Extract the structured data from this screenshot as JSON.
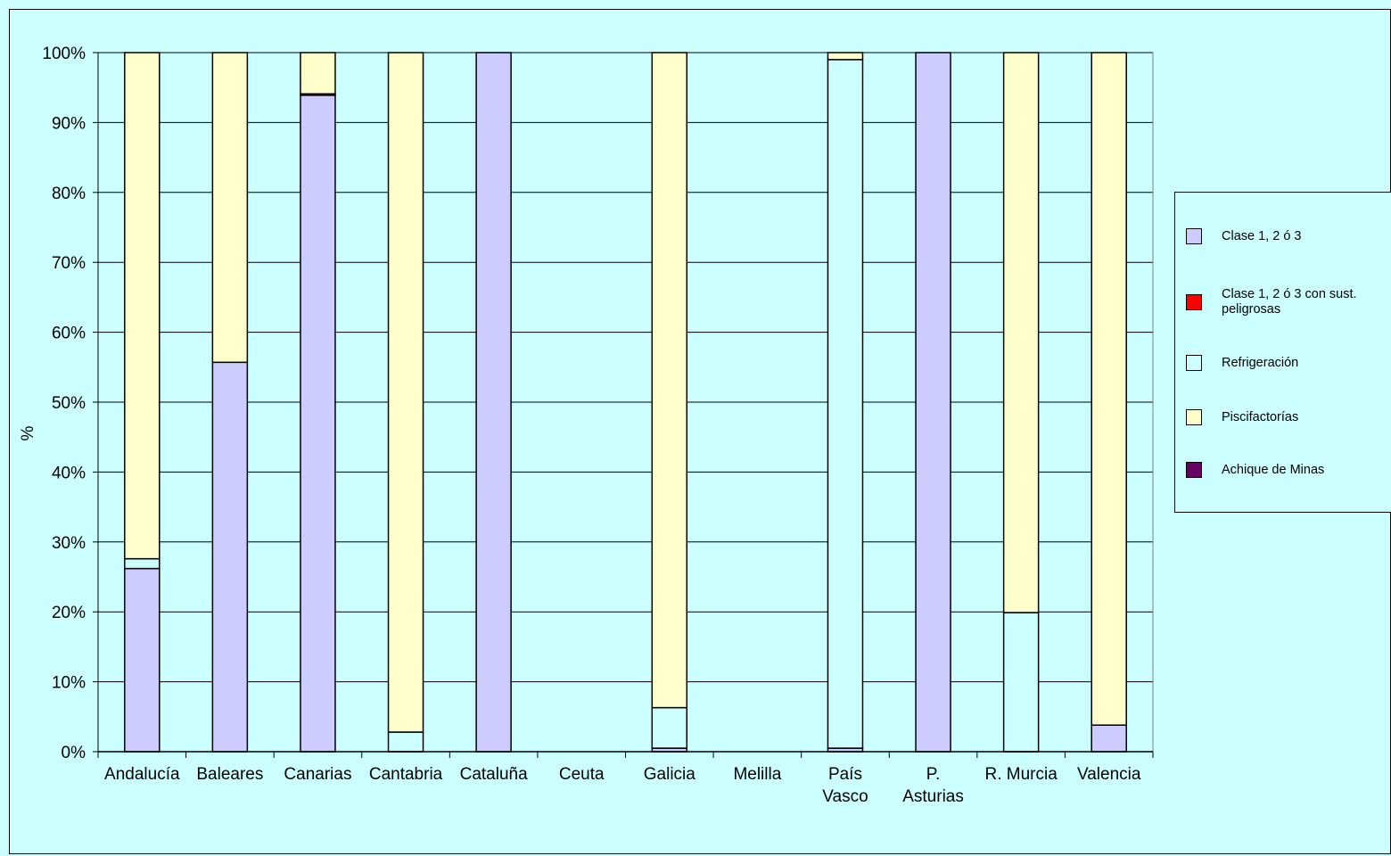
{
  "chart_data": {
    "type": "bar",
    "stacked": true,
    "percent_stacked": true,
    "ylabel": "%",
    "xlabel": "",
    "ylim": [
      0,
      100
    ],
    "yticks": [
      "0%",
      "10%",
      "20%",
      "30%",
      "40%",
      "50%",
      "60%",
      "70%",
      "80%",
      "90%",
      "100%"
    ],
    "grid": true,
    "legend_position": "right",
    "categories": [
      "Andalucía",
      "Baleares",
      "Canarias",
      "Cantabria",
      "Cataluña",
      "Ceuta",
      "Galicia",
      "Melilla",
      "País Vasco",
      "P. Asturias",
      "R. Murcia",
      "Valencia"
    ],
    "category_lines": [
      [
        "Andalucía"
      ],
      [
        "Baleares"
      ],
      [
        "Canarias"
      ],
      [
        "Cantabria"
      ],
      [
        "Cataluña"
      ],
      [
        "Ceuta"
      ],
      [
        "Galicia"
      ],
      [
        "Melilla"
      ],
      [
        "País",
        "Vasco"
      ],
      [
        "P.",
        "Asturias"
      ],
      [
        "R. Murcia"
      ],
      [
        "Valencia"
      ]
    ],
    "series": [
      {
        "name": "Clase 1, 2 ó  3",
        "color": "#ccccff",
        "values": [
          26.2,
          55.7,
          93.9,
          0,
          100,
          0,
          0.5,
          0,
          0.5,
          100,
          0,
          3.8
        ]
      },
      {
        "name": "Clase 1, 2 ó 3 con sust. peligrosas",
        "color": "#ff0000",
        "values": [
          0,
          0,
          0.2,
          0,
          0,
          0,
          0,
          0,
          0,
          0,
          0,
          0
        ]
      },
      {
        "name": "Refrigeración",
        "color": "#ccffff",
        "values": [
          1.4,
          0,
          0,
          2.8,
          0,
          0,
          5.8,
          0,
          98.5,
          0,
          19.9,
          0
        ]
      },
      {
        "name": "Piscifactorías",
        "color": "#ffffcc",
        "values": [
          72.4,
          44.3,
          5.9,
          97.2,
          0,
          0,
          93.7,
          0,
          1.0,
          0,
          80.1,
          96.2
        ]
      },
      {
        "name": "Achique de Minas",
        "color": "#660066",
        "values": [
          0,
          0,
          0,
          0,
          0,
          0,
          0,
          0,
          0,
          0,
          0,
          0
        ]
      }
    ]
  }
}
